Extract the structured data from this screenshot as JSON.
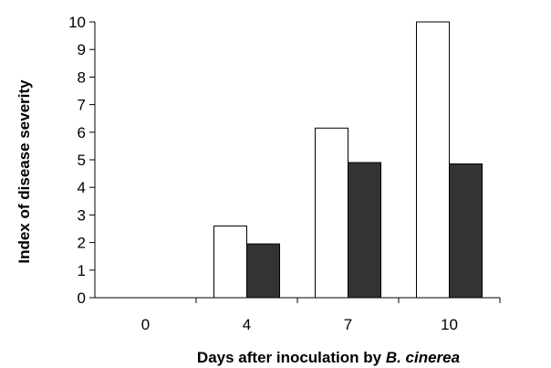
{
  "chart_data": {
    "type": "bar",
    "categories": [
      "0",
      "4",
      "7",
      "10"
    ],
    "series": [
      {
        "values": [
          0,
          2.6,
          6.15,
          10
        ],
        "color": "#ffffff"
      },
      {
        "values": [
          0,
          1.95,
          4.9,
          4.85
        ],
        "color": "#333333"
      }
    ],
    "ylabel": "Index of disease severity",
    "xlabel": "Days after inoculation by ",
    "xlabel_italic": "B. cinerea",
    "ylim": [
      0,
      10
    ],
    "yticks": [
      0,
      1,
      2,
      3,
      4,
      5,
      6,
      7,
      8,
      9,
      10
    ],
    "grid": false,
    "legend": "none"
  }
}
